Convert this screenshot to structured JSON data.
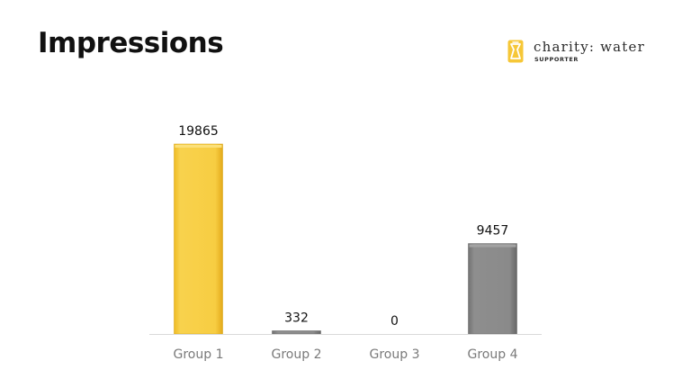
{
  "slide": {
    "title": "Impressions"
  },
  "logo": {
    "name": "charity: water",
    "subtitle": "SUPPORTER",
    "icon": "jerrycan-icon",
    "color": "#f6c737"
  },
  "chart_data": {
    "type": "bar",
    "title": "Impressions",
    "xlabel": "",
    "ylabel": "",
    "categories": [
      "Group 1",
      "Group 2",
      "Group 3",
      "Group 4"
    ],
    "values": [
      19865,
      332,
      0,
      9457
    ],
    "value_labels": [
      "19865",
      "332",
      "0",
      "9457"
    ],
    "ylim": [
      0,
      19865
    ],
    "grid": false,
    "legend": "none",
    "bar_colors": [
      "#f6cb3d",
      "#8a8a8a",
      "#8a8a8a",
      "#8a8a8a"
    ],
    "bar_edge_colors": [
      "#d9a91e",
      "#6e6e6e",
      "#6e6e6e",
      "#6e6e6e"
    ]
  }
}
